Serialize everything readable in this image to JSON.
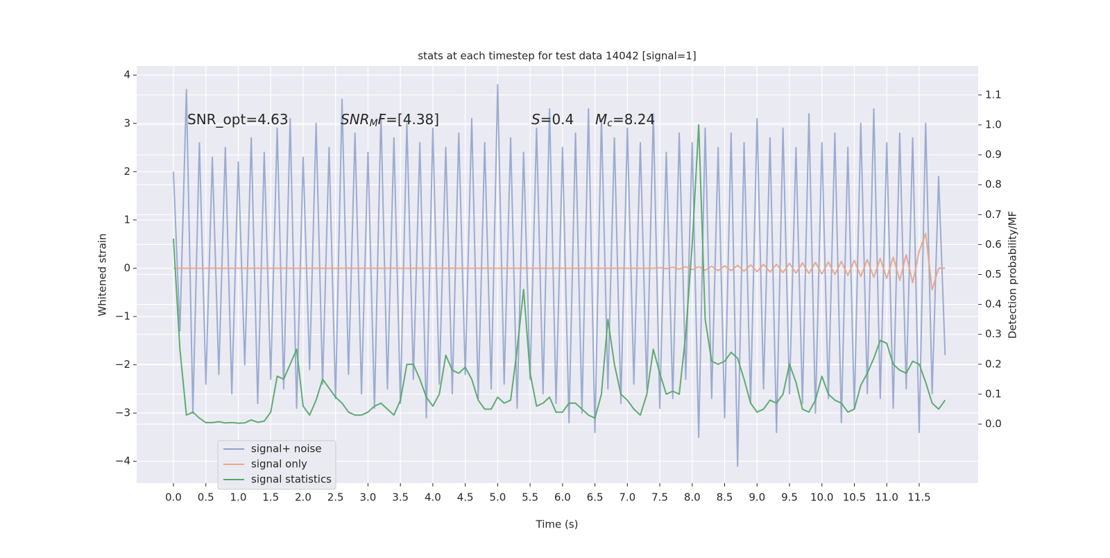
{
  "chart_data": {
    "type": "line",
    "title": "stats at each timestep for test data 14042 [signal=1]",
    "xlabel": "Time (s)",
    "ylabel": "Whitened strain",
    "y2label": "Detection probability/MF",
    "annotations": [
      [
        {
          "text": "SNR_opt=4.63",
          "style": "normal"
        }
      ],
      [
        {
          "text": "SNR",
          "style": "italic"
        },
        {
          "text": "M",
          "style": "sub"
        },
        {
          "text": "F",
          "style": "italic"
        },
        {
          "text": "=[4.38]",
          "style": "normal"
        }
      ],
      [
        {
          "text": "S",
          "style": "italic"
        },
        {
          "text": "=0.4",
          "style": "normal"
        }
      ],
      [
        {
          "text": "M",
          "style": "italic"
        },
        {
          "text": "c",
          "style": "sub"
        },
        {
          "text": "=8.24",
          "style": "normal"
        }
      ]
    ],
    "x": [
      0,
      0.1,
      0.2,
      0.3,
      0.4,
      0.5,
      0.6,
      0.7,
      0.8,
      0.9,
      1,
      1.1,
      1.2,
      1.3,
      1.4,
      1.5,
      1.6,
      1.7,
      1.8,
      1.9,
      2,
      2.1,
      2.2,
      2.3,
      2.4,
      2.5,
      2.6,
      2.7,
      2.8,
      2.9,
      3,
      3.1,
      3.2,
      3.3,
      3.4,
      3.5,
      3.6,
      3.7,
      3.8,
      3.9,
      4,
      4.1,
      4.2,
      4.3,
      4.4,
      4.5,
      4.6,
      4.7,
      4.8,
      4.9,
      5,
      5.1,
      5.2,
      5.3,
      5.4,
      5.5,
      5.6,
      5.7,
      5.8,
      5.9,
      6,
      6.1,
      6.2,
      6.3,
      6.4,
      6.5,
      6.6,
      6.7,
      6.8,
      6.9,
      7,
      7.1,
      7.2,
      7.3,
      7.4,
      7.5,
      7.6,
      7.7,
      7.8,
      7.9,
      8,
      8.1,
      8.2,
      8.3,
      8.4,
      8.5,
      8.6,
      8.7,
      8.8,
      8.9,
      9,
      9.1,
      9.2,
      9.3,
      9.4,
      9.5,
      9.6,
      9.7,
      9.8,
      9.9,
      10,
      10.1,
      10.2,
      10.3,
      10.4,
      10.5,
      10.6,
      10.7,
      10.8,
      10.9,
      11,
      11.1,
      11.2,
      11.3,
      11.4,
      11.5,
      11.6,
      11.7,
      11.8,
      11.9
    ],
    "series": [
      {
        "name": "signal+ noise",
        "color": "#8da0cb",
        "values": [
          2.0,
          -1.3,
          3.7,
          -3.0,
          2.6,
          -2.4,
          2.3,
          -2.2,
          2.5,
          -2.6,
          2.2,
          -2.0,
          2.7,
          -2.8,
          2.4,
          -2.3,
          2.9,
          -2.5,
          3.1,
          -2.9,
          2.3,
          -2.1,
          3.0,
          -2.4,
          2.5,
          -2.7,
          3.5,
          -2.2,
          2.8,
          -2.6,
          2.4,
          -2.9,
          3.2,
          -2.5,
          2.7,
          -2.8,
          3.0,
          -2.3,
          2.6,
          -3.1,
          2.9,
          -2.4,
          2.5,
          -2.6,
          2.8,
          -2.2,
          3.1,
          -2.7,
          2.6,
          -2.5,
          3.8,
          -2.4,
          2.7,
          -2.9,
          2.4,
          -2.3,
          2.9,
          -2.6,
          3.3,
          -2.8,
          2.5,
          -3.2,
          2.8,
          -3.0,
          3.3,
          -3.4,
          3.1,
          -2.5,
          2.7,
          -2.8,
          2.9,
          -2.4,
          2.6,
          -2.5,
          3.2,
          -2.9,
          2.4,
          -2.7,
          2.8,
          -2.3,
          2.6,
          -3.5,
          2.9,
          -2.7,
          2.5,
          -3.1,
          2.8,
          -4.1,
          2.6,
          -2.8,
          3.1,
          -2.5,
          2.7,
          -3.4,
          2.9,
          -2.6,
          2.5,
          -2.8,
          3.2,
          -3.0,
          2.6,
          -2.7,
          2.8,
          -3.2,
          2.5,
          -2.9,
          3.0,
          -2.6,
          3.3,
          -2.7,
          2.6,
          -2.9,
          2.8,
          -2.5,
          2.7,
          -3.4,
          3.0,
          -2.6,
          1.9,
          -1.8
        ]
      },
      {
        "name": "signal only",
        "color": "#e8a58a",
        "values": [
          0,
          0,
          0,
          0,
          0,
          0,
          0,
          0,
          0,
          0,
          0,
          0,
          0,
          0,
          0,
          0,
          0,
          0,
          0,
          0,
          0,
          0,
          0,
          0,
          0,
          0,
          0,
          0,
          0,
          0,
          0,
          0,
          0,
          0,
          0,
          0,
          0,
          0,
          0,
          0,
          0,
          0,
          0,
          0,
          0,
          0,
          0,
          0,
          0,
          0,
          0,
          0,
          0,
          0,
          0,
          0,
          0,
          0,
          0,
          0,
          0,
          0,
          0,
          0,
          0,
          0,
          0,
          0,
          0,
          0,
          0,
          0,
          0,
          0,
          0,
          0.01,
          -0.01,
          0.02,
          -0.02,
          0.03,
          -0.03,
          0.03,
          -0.04,
          0.04,
          -0.05,
          0.05,
          -0.05,
          0.06,
          -0.06,
          0.07,
          -0.07,
          0.08,
          -0.08,
          0.08,
          -0.09,
          0.1,
          -0.1,
          0.11,
          -0.11,
          0.12,
          -0.12,
          0.13,
          -0.13,
          0.14,
          -0.15,
          0.16,
          -0.17,
          0.18,
          -0.19,
          0.2,
          -0.21,
          0.23,
          -0.25,
          0.28,
          -0.3,
          0.35,
          0.72,
          -0.45,
          0,
          0
        ]
      },
      {
        "name": "signal statistics",
        "color": "#55a868",
        "axis": "y2",
        "values": [
          0.62,
          0.25,
          0.03,
          0.04,
          0.02,
          0.005,
          0.005,
          0.008,
          0.004,
          0.005,
          0.003,
          0.004,
          0.014,
          0.006,
          0.01,
          0.04,
          0.16,
          0.15,
          0.2,
          0.25,
          0.06,
          0.03,
          0.08,
          0.15,
          0.12,
          0.09,
          0.07,
          0.04,
          0.03,
          0.03,
          0.04,
          0.06,
          0.07,
          0.05,
          0.03,
          0.08,
          0.2,
          0.2,
          0.15,
          0.09,
          0.06,
          0.1,
          0.23,
          0.18,
          0.17,
          0.19,
          0.15,
          0.08,
          0.05,
          0.05,
          0.09,
          0.07,
          0.08,
          0.25,
          0.45,
          0.17,
          0.06,
          0.07,
          0.09,
          0.04,
          0.04,
          0.07,
          0.07,
          0.05,
          0.03,
          0.02,
          0.1,
          0.35,
          0.2,
          0.1,
          0.08,
          0.05,
          0.03,
          0.1,
          0.25,
          0.17,
          0.1,
          0.11,
          0.1,
          0.3,
          0.6,
          1.0,
          0.35,
          0.21,
          0.2,
          0.21,
          0.24,
          0.22,
          0.15,
          0.07,
          0.04,
          0.05,
          0.08,
          0.07,
          0.1,
          0.2,
          0.14,
          0.05,
          0.04,
          0.08,
          0.16,
          0.1,
          0.08,
          0.07,
          0.04,
          0.05,
          0.13,
          0.17,
          0.22,
          0.28,
          0.27,
          0.2,
          0.18,
          0.17,
          0.21,
          0.2,
          0.14,
          0.07,
          0.05,
          0.08
        ]
      }
    ],
    "xlim": [
      -0.567,
      12.41
    ],
    "xticks": [
      {
        "value": 0,
        "label": "0.0"
      },
      0.5,
      {
        "value": 1,
        "label": "1.0"
      },
      1.5,
      {
        "value": 2,
        "label": "2.0"
      },
      2.5,
      {
        "value": 3,
        "label": "3.0"
      },
      3.5,
      {
        "value": 4,
        "label": "4.0"
      },
      4.5,
      {
        "value": 5,
        "label": "5.0"
      },
      5.5,
      {
        "value": 6,
        "label": "6.0"
      },
      6.5,
      {
        "value": 7,
        "label": "7.0"
      },
      7.5,
      {
        "value": 8,
        "label": "8.0"
      },
      8.5,
      {
        "value": 9,
        "label": "9.0"
      },
      9.5,
      {
        "value": 10,
        "label": "10.0"
      },
      10.5,
      {
        "value": 11,
        "label": "11.0"
      },
      11.5
    ],
    "ylim": [
      -4.45,
      4.19
    ],
    "yticks": [
      {
        "value": -4,
        "label": "−4"
      },
      {
        "value": -3,
        "label": "−3"
      },
      {
        "value": -2,
        "label": "−2"
      },
      {
        "value": -1,
        "label": "−1"
      },
      0,
      1,
      2,
      3,
      4
    ],
    "y2lim": [
      -0.197,
      1.197
    ],
    "y2ticks": [
      {
        "value": 0,
        "label": "0.0"
      },
      0.1,
      0.2,
      0.3,
      0.4,
      0.5,
      0.6,
      0.7,
      0.8,
      0.9,
      {
        "value": 1,
        "label": "1.0"
      },
      1.1
    ],
    "grid": true,
    "legend": "lower left"
  }
}
